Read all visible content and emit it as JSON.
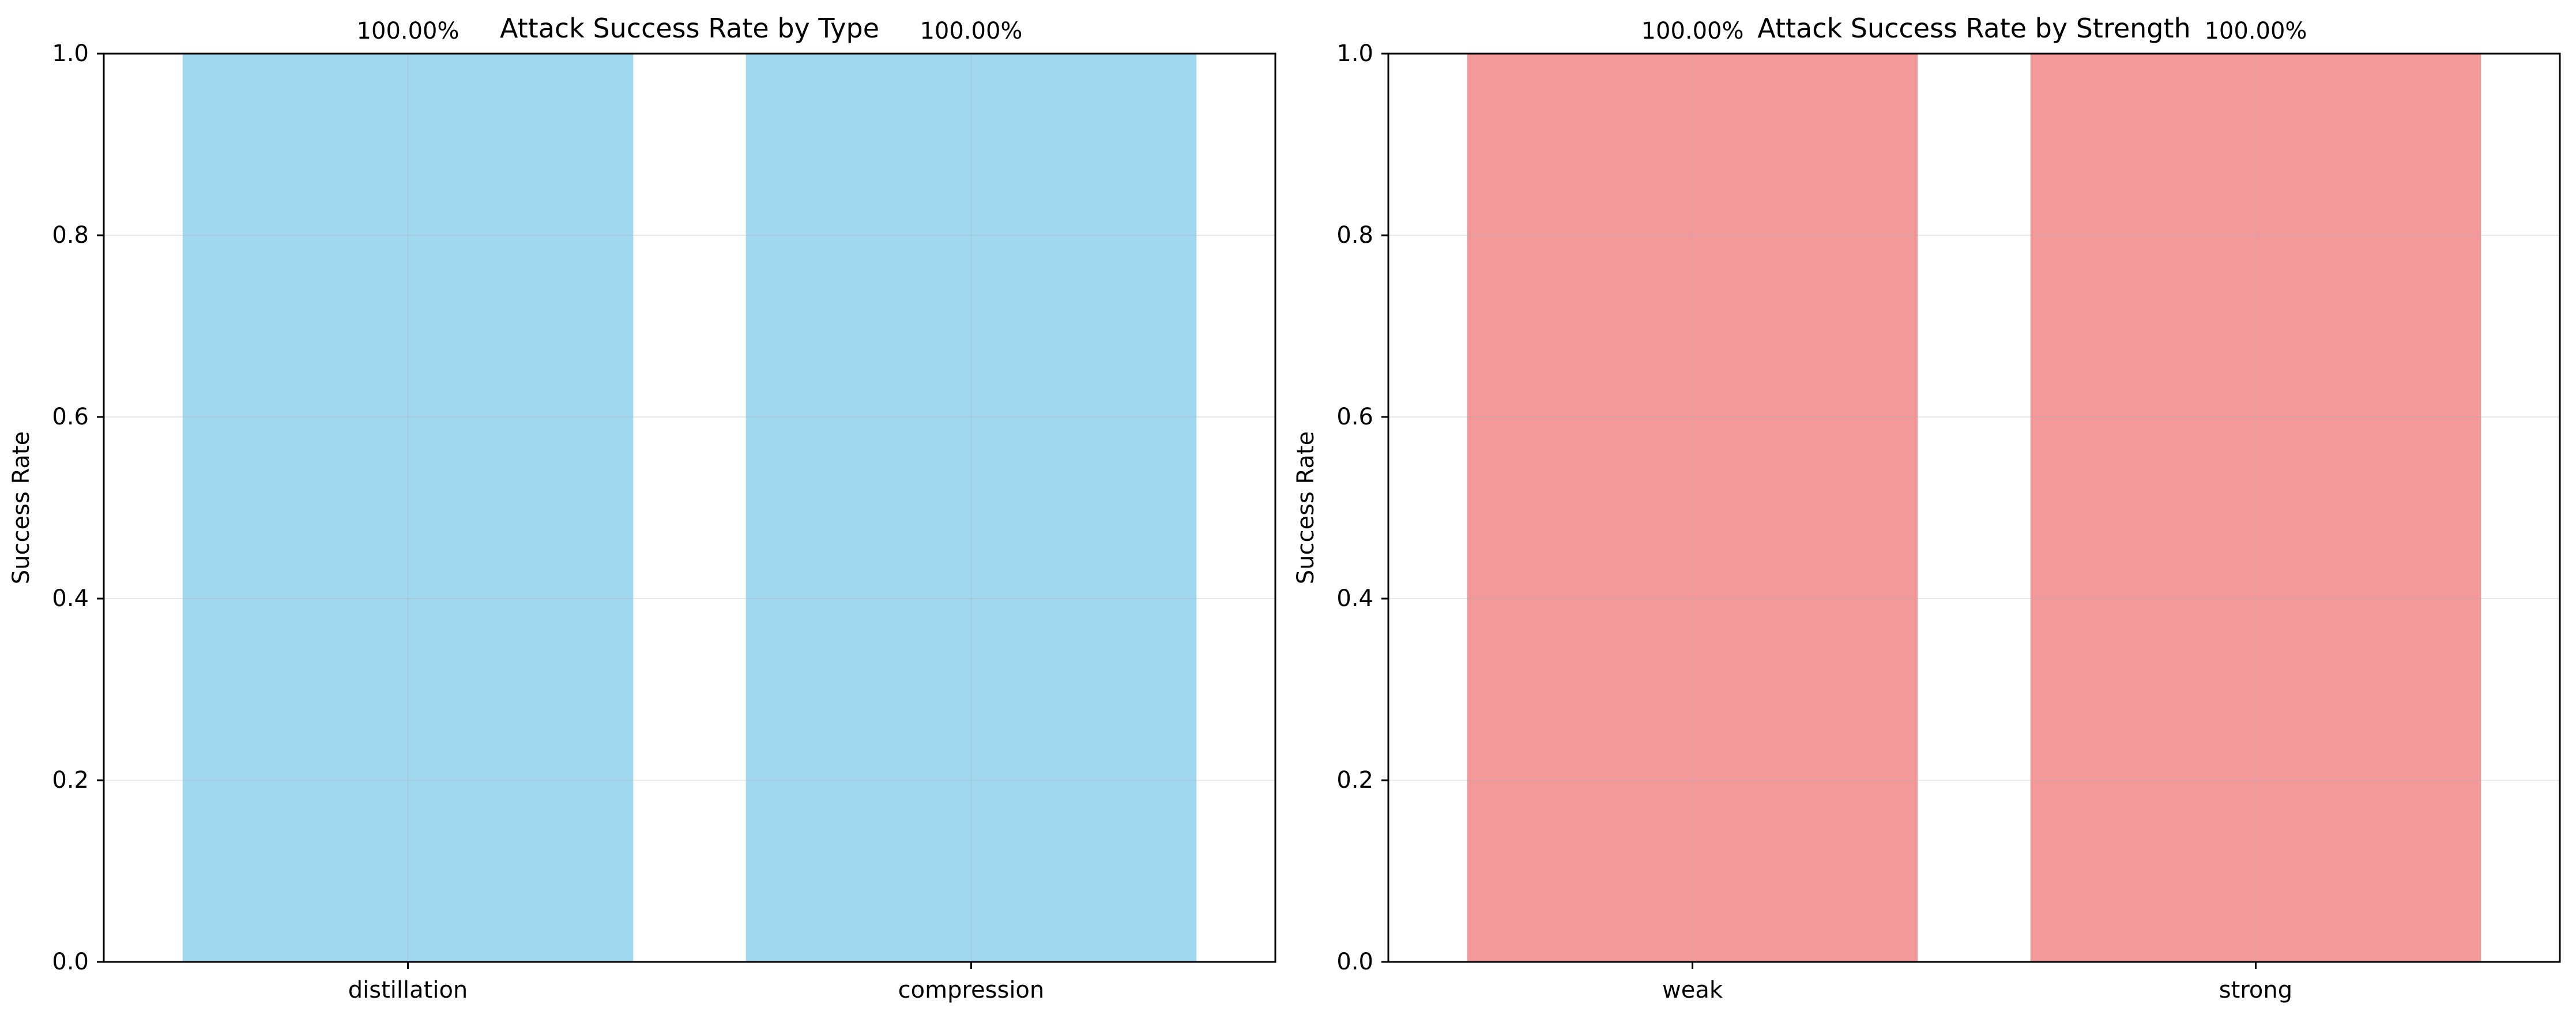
{
  "chart_data": [
    {
      "type": "bar",
      "title": "Attack Success Rate by Type",
      "xlabel": "",
      "ylabel": "Success Rate",
      "categories": [
        "distillation",
        "compression"
      ],
      "values": [
        1.0,
        1.0
      ],
      "value_labels": [
        "100.00%",
        "100.00%"
      ],
      "ylim": [
        0,
        1
      ],
      "yticks": [
        0.0,
        0.2,
        0.4,
        0.6,
        0.8,
        1.0
      ],
      "ytick_labels": [
        "0.0",
        "0.2",
        "0.4",
        "0.6",
        "0.8",
        "1.0"
      ],
      "grid": true,
      "bar_color": "#87ceeb",
      "bar_alpha": 0.8
    },
    {
      "type": "bar",
      "title": "Attack Success Rate by Strength",
      "xlabel": "",
      "ylabel": "Success Rate",
      "categories": [
        "weak",
        "strong"
      ],
      "values": [
        1.0,
        1.0
      ],
      "value_labels": [
        "100.00%",
        "100.00%"
      ],
      "ylim": [
        0,
        1
      ],
      "yticks": [
        0.0,
        0.2,
        0.4,
        0.6,
        0.8,
        1.0
      ],
      "ytick_labels": [
        "0.0",
        "0.2",
        "0.4",
        "0.6",
        "0.8",
        "1.0"
      ],
      "grid": true,
      "bar_color": "#f08080",
      "bar_alpha": 0.8
    }
  ]
}
